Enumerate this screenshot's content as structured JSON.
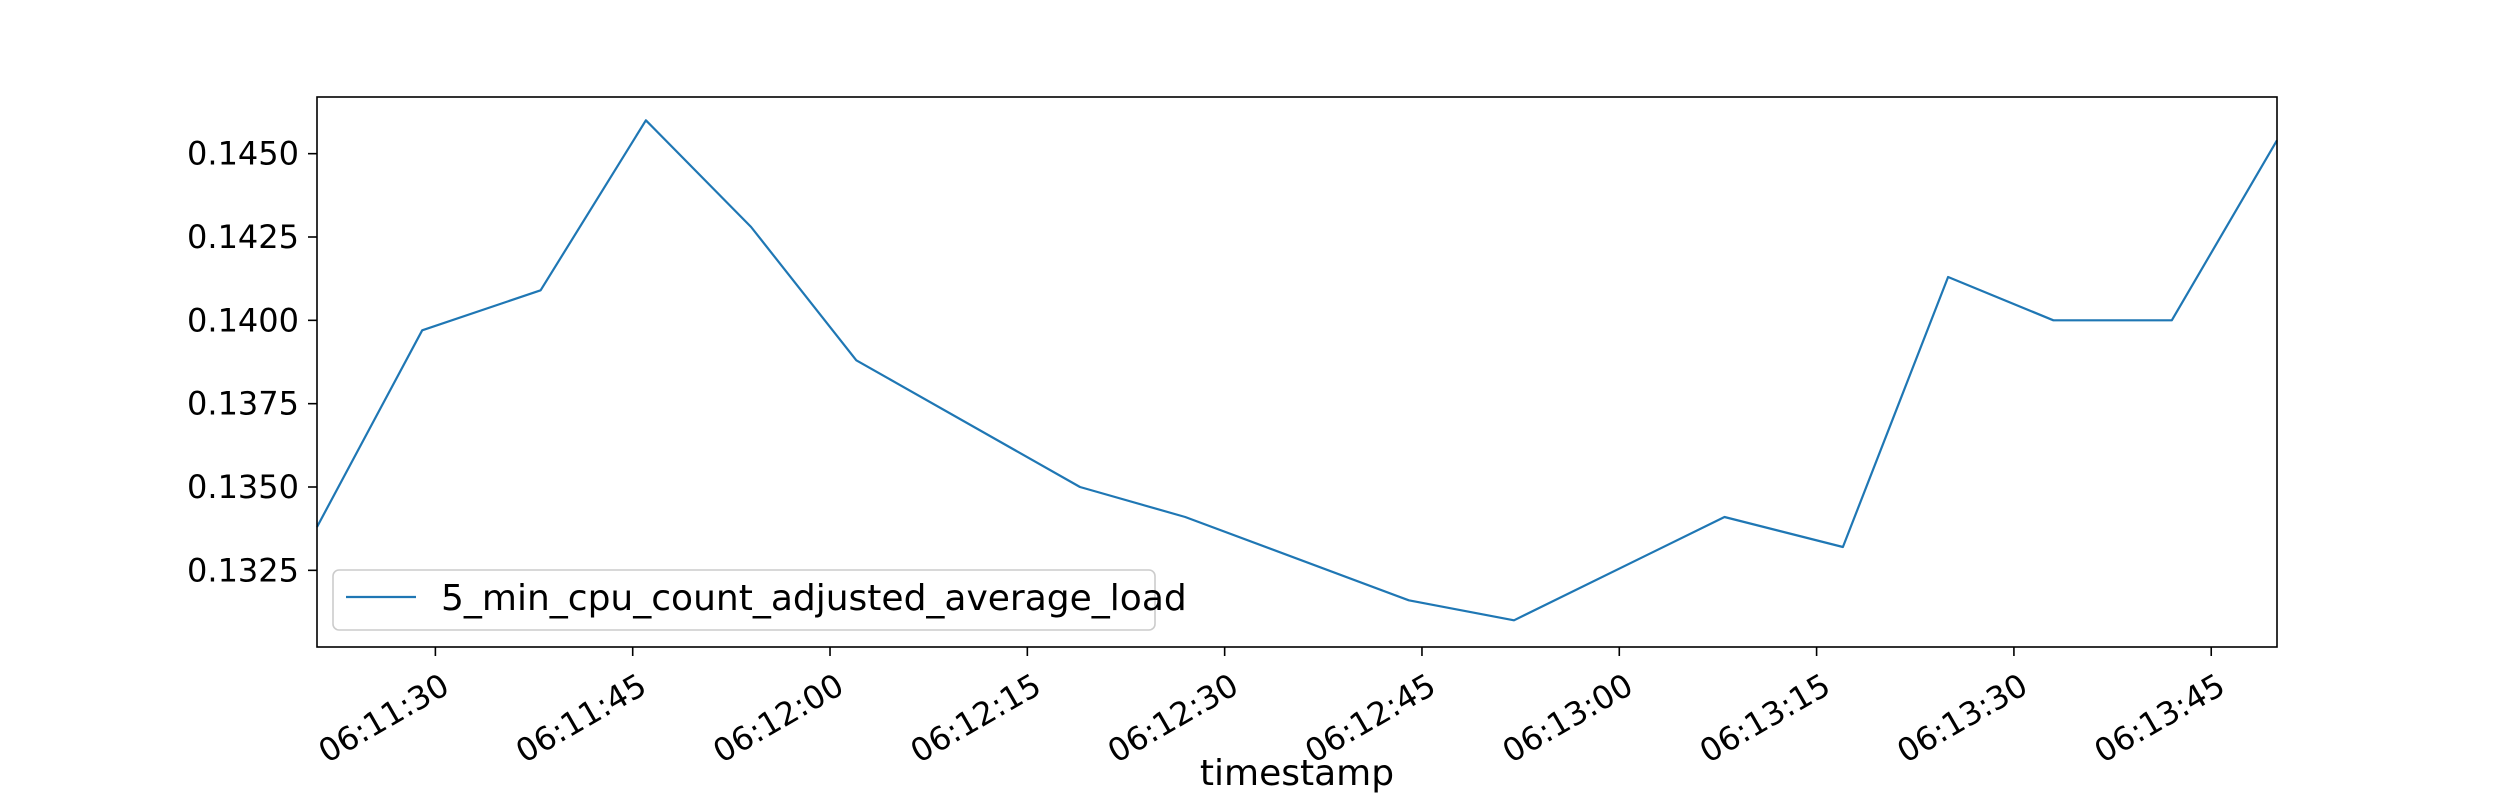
{
  "chart_data": {
    "type": "line",
    "title": "",
    "xlabel": "timestamp",
    "ylabel": "",
    "x_tick_labels": [
      "06:11:30",
      "06:11:45",
      "06:12:00",
      "06:12:15",
      "06:12:30",
      "06:12:45",
      "06:13:00",
      "06:13:15",
      "06:13:30",
      "06:13:45"
    ],
    "y_tick_labels": [
      "0.1325",
      "0.1350",
      "0.1375",
      "0.1400",
      "0.1425",
      "0.1450"
    ],
    "xlim": [
      "06:11:21",
      "06:13:50"
    ],
    "ylim": [
      0.1302,
      0.1467
    ],
    "grid": false,
    "legend_position": "lower-left",
    "series_color": "#1f77b4",
    "series": [
      {
        "name": "5_min_cpu_count_adjusted_average_load",
        "x": [
          "06:11:21",
          "06:11:29",
          "06:11:38",
          "06:11:46",
          "06:11:54",
          "06:12:02",
          "06:12:19",
          "06:12:27",
          "06:12:44",
          "06:12:52",
          "06:13:08",
          "06:13:17",
          "06:13:25",
          "06:13:33",
          "06:13:42",
          "06:13:50"
        ],
        "values": [
          0.1338,
          0.1397,
          0.1409,
          0.146,
          0.1428,
          0.1388,
          0.135,
          0.1341,
          0.1316,
          0.131,
          0.1341,
          0.1332,
          0.1413,
          0.14,
          0.14,
          0.1454
        ]
      }
    ]
  }
}
